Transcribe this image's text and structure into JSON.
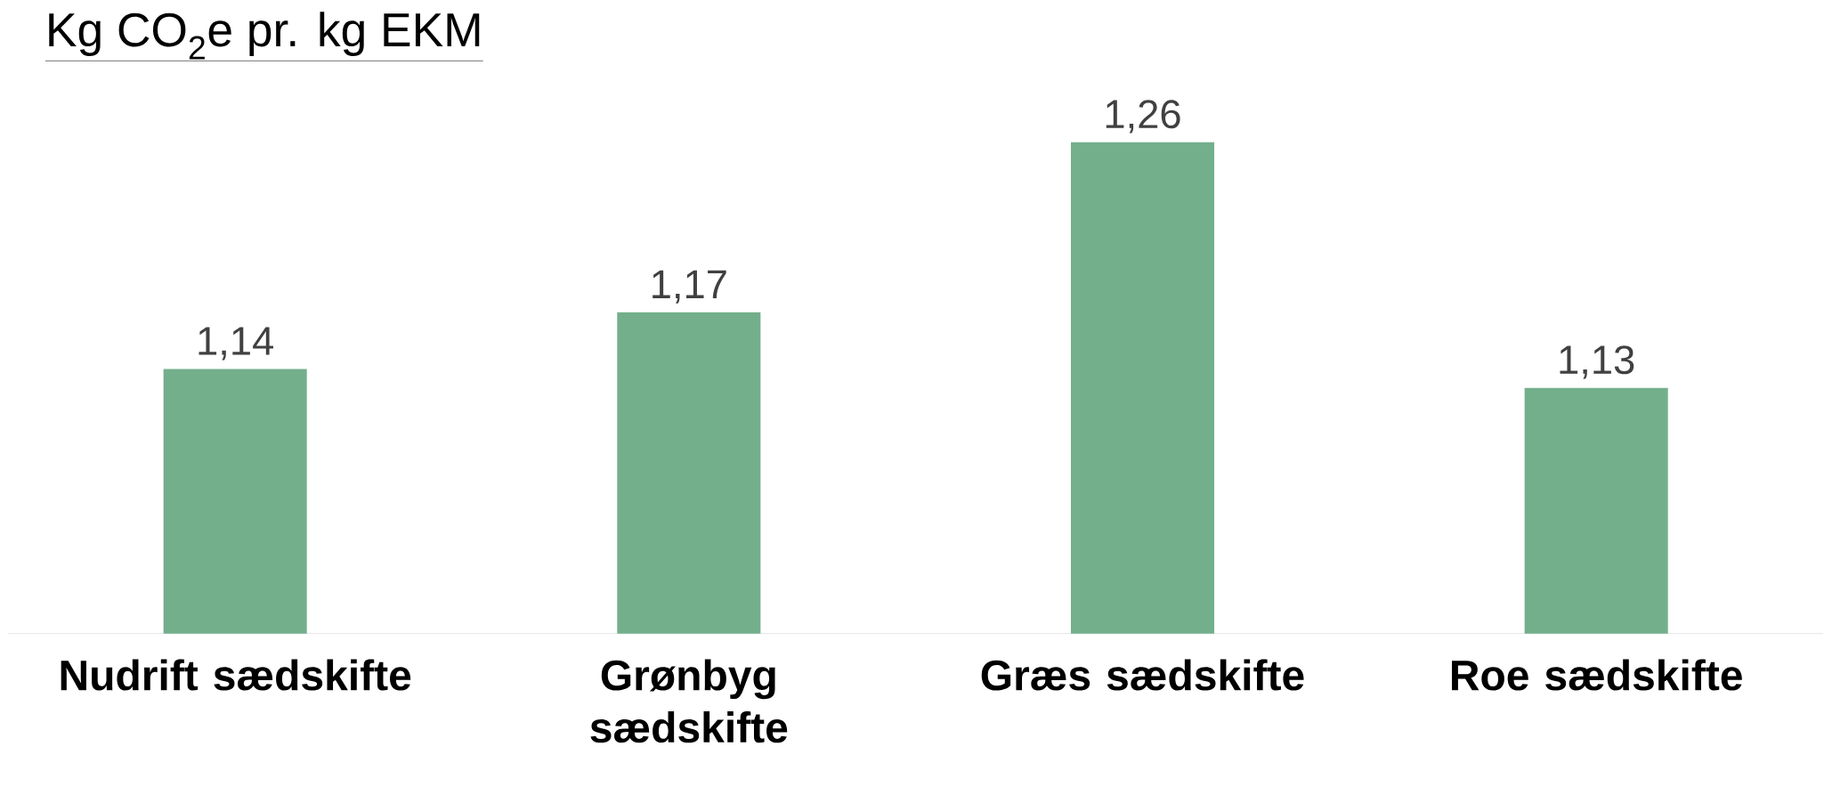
{
  "chart_data": {
    "type": "bar",
    "title": "Kg CO$_{2}$e pr. kg EKM",
    "categories": [
      "Nudrift sædskifte",
      "Grønbyg sædskifte",
      "Græs sædskifte",
      "Roe sædskifte"
    ],
    "values": [
      1.14,
      1.17,
      1.26,
      1.13
    ],
    "value_labels": [
      "1,14",
      "1,17",
      "1,26",
      "1,13"
    ],
    "color": "#73af8b",
    "ylim": [
      1.0,
      1.26
    ],
    "tick_labels": "x"
  }
}
